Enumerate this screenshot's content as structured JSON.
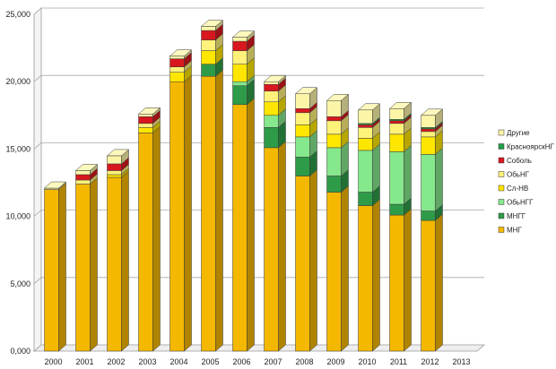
{
  "chart_data": {
    "type": "bar",
    "stacked": true,
    "three_d": true,
    "categories": [
      "2000",
      "2001",
      "2002",
      "2003",
      "2004",
      "2005",
      "2006",
      "2007",
      "2008",
      "2009",
      "2010",
      "2011",
      "2012",
      "2013"
    ],
    "y_tick_labels": [
      "0,000",
      "5,000",
      "10,000",
      "15,000",
      "20,000",
      "25,000"
    ],
    "ylim": [
      0,
      25000
    ],
    "grid": true,
    "legend_position": "right",
    "series": [
      {
        "name": "МНГ",
        "color": "#F5B800",
        "values": [
          12000,
          12400,
          12900,
          16200,
          20000,
          20400,
          18300,
          15100,
          13000,
          11800,
          10800,
          10100,
          9700,
          0
        ]
      },
      {
        "name": "МНГГ",
        "color": "#2E9B48",
        "values": [
          0,
          0,
          0,
          0,
          0,
          900,
          1400,
          1500,
          1400,
          1200,
          1000,
          800,
          700,
          0
        ]
      },
      {
        "name": "ОбьНГГ",
        "color": "#86E88C",
        "values": [
          0,
          0,
          0,
          0,
          0,
          0,
          300,
          900,
          1500,
          2100,
          3100,
          3900,
          4200,
          0
        ]
      },
      {
        "name": "Сл-НВ",
        "color": "#FFE600",
        "values": [
          0,
          0,
          200,
          400,
          700,
          1000,
          1300,
          1000,
          900,
          1000,
          900,
          1300,
          1300,
          0
        ]
      },
      {
        "name": "ОбьНГ",
        "color": "#FFF27A",
        "values": [
          0,
          300,
          300,
          300,
          400,
          800,
          1000,
          800,
          900,
          1000,
          800,
          800,
          400,
          0
        ]
      },
      {
        "name": "Соболь",
        "color": "#D8171E",
        "values": [
          0,
          400,
          500,
          500,
          600,
          700,
          700,
          500,
          300,
          300,
          200,
          200,
          200,
          0
        ]
      },
      {
        "name": "КраснoярскНГ",
        "color": "#239E4A",
        "values": [
          0,
          0,
          0,
          0,
          0,
          0,
          0,
          0,
          0,
          0,
          100,
          100,
          100,
          0
        ]
      },
      {
        "name": "Другие",
        "color": "#FCF5A8",
        "values": [
          100,
          300,
          600,
          200,
          200,
          300,
          300,
          200,
          1100,
          1200,
          1000,
          800,
          900,
          0
        ]
      }
    ]
  }
}
